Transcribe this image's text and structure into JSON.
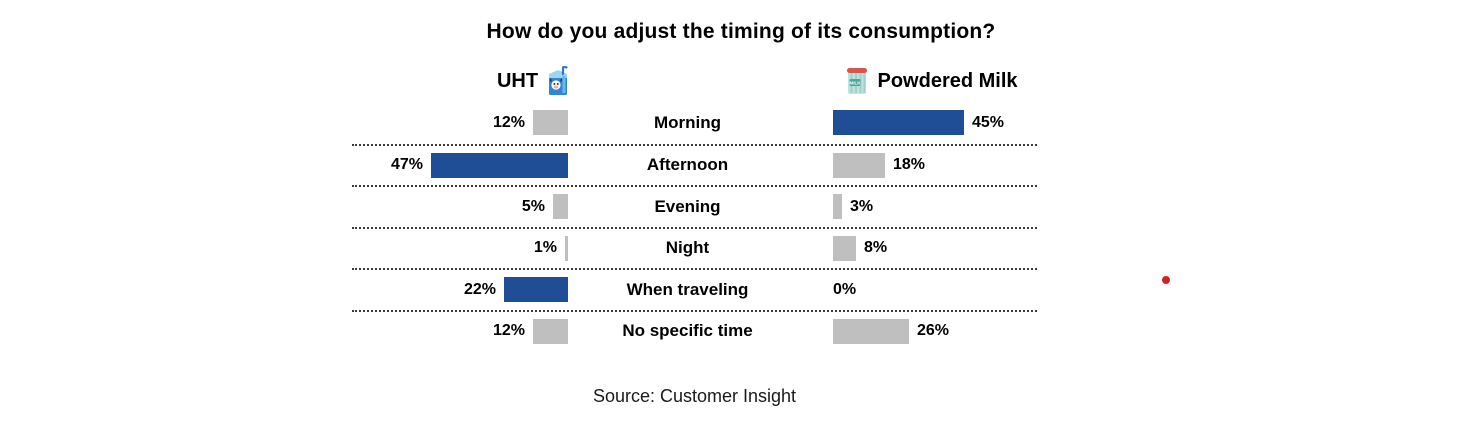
{
  "title": "How do you adjust the timing of its consumption?",
  "source": "Source: Customer Insight",
  "colors": {
    "highlight_blue": "#1F4E96",
    "muted_gray": "#BFBFBF",
    "separator": "#3a3a3a",
    "red_dot": "#d02423"
  },
  "headers": {
    "left": {
      "label": "UHT",
      "icon": "milk-carton-icon"
    },
    "right": {
      "label": "Powdered Milk",
      "icon": "milk-can-icon"
    }
  },
  "chart_data": {
    "type": "bar",
    "variant": "butterfly",
    "title": "How do you adjust the timing of its consumption?",
    "categories": [
      "Morning",
      "Afternoon",
      "Evening",
      "Night",
      "When traveling",
      "No specific time"
    ],
    "series": [
      {
        "name": "UHT",
        "side": "left",
        "values": [
          12,
          47,
          5,
          1,
          22,
          12
        ],
        "highlighted": [
          false,
          true,
          false,
          false,
          true,
          false
        ]
      },
      {
        "name": "Powdered Milk",
        "side": "right",
        "values": [
          45,
          18,
          3,
          8,
          0,
          26
        ],
        "highlighted": [
          true,
          false,
          false,
          false,
          false,
          false
        ]
      }
    ],
    "unit": "%",
    "xlim": [
      0,
      47
    ],
    "grid": "dotted-row-separators",
    "legend_position": "column-headers",
    "source": "Source: Customer Insight"
  }
}
